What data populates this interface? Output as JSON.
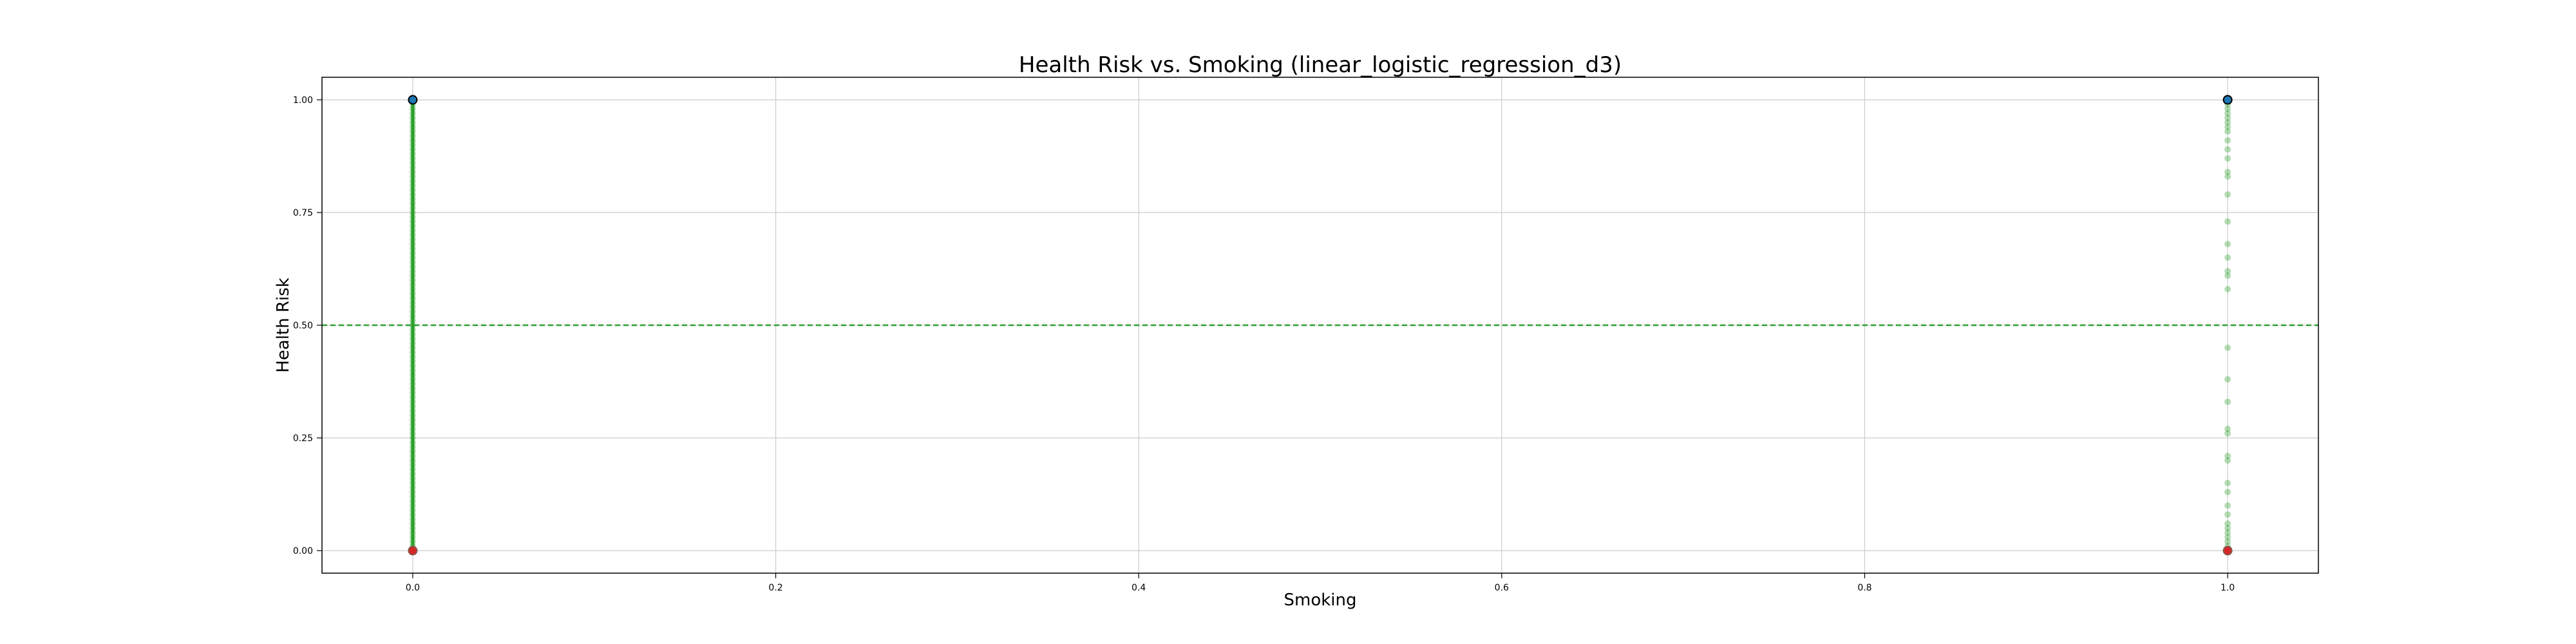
{
  "chart_data": {
    "type": "scatter",
    "title": "Health Risk vs. Smoking (linear_logistic_regression_d3)",
    "xlabel": "Smoking",
    "ylabel": "Health Risk",
    "xlim": [
      -0.05,
      1.05
    ],
    "ylim": [
      -0.05,
      1.05
    ],
    "x_ticks": [
      0.0,
      0.2,
      0.4,
      0.6,
      0.8,
      1.0
    ],
    "x_tick_labels": [
      "0.0",
      "0.2",
      "0.4",
      "0.6",
      "0.8",
      "1.0"
    ],
    "y_ticks": [
      0.0,
      0.25,
      0.5,
      0.75,
      1.0
    ],
    "y_tick_labels": [
      "0.00",
      "0.25",
      "0.50",
      "0.75",
      "1.00"
    ],
    "grid": true,
    "threshold_line": {
      "y": 0.5,
      "style": "dashed",
      "color": "#2ca02c"
    },
    "series": [
      {
        "marker": "circle",
        "color": "#1f77b4",
        "edge_color": "#000000",
        "points": [
          {
            "x": 0.0,
            "y": 1.0
          },
          {
            "x": 1.0,
            "y": 1.0
          }
        ]
      },
      {
        "marker": "circle",
        "color": "#d62728",
        "edge_color": "#8c564b",
        "points": [
          {
            "x": 0.0,
            "y": 0.0
          },
          {
            "x": 1.0,
            "y": 0.0
          }
        ]
      },
      {
        "marker": "circle",
        "color": "#2ca02c",
        "alpha": 0.35,
        "points": [
          {
            "x": 0.0,
            "y": 0.0
          },
          {
            "x": 0.0,
            "y": 0.01
          },
          {
            "x": 0.0,
            "y": 0.02
          },
          {
            "x": 0.0,
            "y": 0.03
          },
          {
            "x": 0.0,
            "y": 0.04
          },
          {
            "x": 0.0,
            "y": 0.05
          },
          {
            "x": 0.0,
            "y": 0.06
          },
          {
            "x": 0.0,
            "y": 0.07
          },
          {
            "x": 0.0,
            "y": 0.08
          },
          {
            "x": 0.0,
            "y": 0.09
          },
          {
            "x": 0.0,
            "y": 0.1
          },
          {
            "x": 0.0,
            "y": 0.11
          },
          {
            "x": 0.0,
            "y": 0.12
          },
          {
            "x": 0.0,
            "y": 0.13
          },
          {
            "x": 0.0,
            "y": 0.14
          },
          {
            "x": 0.0,
            "y": 0.15
          },
          {
            "x": 0.0,
            "y": 0.16
          },
          {
            "x": 0.0,
            "y": 0.17
          },
          {
            "x": 0.0,
            "y": 0.18
          },
          {
            "x": 0.0,
            "y": 0.19
          },
          {
            "x": 0.0,
            "y": 0.2
          },
          {
            "x": 0.0,
            "y": 0.21
          },
          {
            "x": 0.0,
            "y": 0.22
          },
          {
            "x": 0.0,
            "y": 0.23
          },
          {
            "x": 0.0,
            "y": 0.24
          },
          {
            "x": 0.0,
            "y": 0.25
          },
          {
            "x": 0.0,
            "y": 0.26
          },
          {
            "x": 0.0,
            "y": 0.27
          },
          {
            "x": 0.0,
            "y": 0.28
          },
          {
            "x": 0.0,
            "y": 0.29
          },
          {
            "x": 0.0,
            "y": 0.3
          },
          {
            "x": 0.0,
            "y": 0.31
          },
          {
            "x": 0.0,
            "y": 0.32
          },
          {
            "x": 0.0,
            "y": 0.33
          },
          {
            "x": 0.0,
            "y": 0.34
          },
          {
            "x": 0.0,
            "y": 0.35
          },
          {
            "x": 0.0,
            "y": 0.36
          },
          {
            "x": 0.0,
            "y": 0.37
          },
          {
            "x": 0.0,
            "y": 0.38
          },
          {
            "x": 0.0,
            "y": 0.39
          },
          {
            "x": 0.0,
            "y": 0.4
          },
          {
            "x": 0.0,
            "y": 0.41
          },
          {
            "x": 0.0,
            "y": 0.42
          },
          {
            "x": 0.0,
            "y": 0.43
          },
          {
            "x": 0.0,
            "y": 0.44
          },
          {
            "x": 0.0,
            "y": 0.45
          },
          {
            "x": 0.0,
            "y": 0.46
          },
          {
            "x": 0.0,
            "y": 0.47
          },
          {
            "x": 0.0,
            "y": 0.48
          },
          {
            "x": 0.0,
            "y": 0.49
          },
          {
            "x": 0.0,
            "y": 0.5
          },
          {
            "x": 0.0,
            "y": 0.51
          },
          {
            "x": 0.0,
            "y": 0.52
          },
          {
            "x": 0.0,
            "y": 0.53
          },
          {
            "x": 0.0,
            "y": 0.54
          },
          {
            "x": 0.0,
            "y": 0.55
          },
          {
            "x": 0.0,
            "y": 0.56
          },
          {
            "x": 0.0,
            "y": 0.57
          },
          {
            "x": 0.0,
            "y": 0.58
          },
          {
            "x": 0.0,
            "y": 0.59
          },
          {
            "x": 0.0,
            "y": 0.6
          },
          {
            "x": 0.0,
            "y": 0.61
          },
          {
            "x": 0.0,
            "y": 0.62
          },
          {
            "x": 0.0,
            "y": 0.63
          },
          {
            "x": 0.0,
            "y": 0.64
          },
          {
            "x": 0.0,
            "y": 0.65
          },
          {
            "x": 0.0,
            "y": 0.66
          },
          {
            "x": 0.0,
            "y": 0.67
          },
          {
            "x": 0.0,
            "y": 0.68
          },
          {
            "x": 0.0,
            "y": 0.69
          },
          {
            "x": 0.0,
            "y": 0.7
          },
          {
            "x": 0.0,
            "y": 0.71
          },
          {
            "x": 0.0,
            "y": 0.72
          },
          {
            "x": 0.0,
            "y": 0.73
          },
          {
            "x": 0.0,
            "y": 0.74
          },
          {
            "x": 0.0,
            "y": 0.75
          },
          {
            "x": 0.0,
            "y": 0.76
          },
          {
            "x": 0.0,
            "y": 0.77
          },
          {
            "x": 0.0,
            "y": 0.78
          },
          {
            "x": 0.0,
            "y": 0.79
          },
          {
            "x": 0.0,
            "y": 0.8
          },
          {
            "x": 0.0,
            "y": 0.81
          },
          {
            "x": 0.0,
            "y": 0.82
          },
          {
            "x": 0.0,
            "y": 0.83
          },
          {
            "x": 0.0,
            "y": 0.84
          },
          {
            "x": 0.0,
            "y": 0.85
          },
          {
            "x": 0.0,
            "y": 0.86
          },
          {
            "x": 0.0,
            "y": 0.87
          },
          {
            "x": 0.0,
            "y": 0.88
          },
          {
            "x": 0.0,
            "y": 0.89
          },
          {
            "x": 0.0,
            "y": 0.9
          },
          {
            "x": 0.0,
            "y": 0.91
          },
          {
            "x": 0.0,
            "y": 0.92
          },
          {
            "x": 0.0,
            "y": 0.93
          },
          {
            "x": 0.0,
            "y": 0.94
          },
          {
            "x": 0.0,
            "y": 0.95
          },
          {
            "x": 0.0,
            "y": 0.96
          },
          {
            "x": 0.0,
            "y": 0.97
          },
          {
            "x": 0.0,
            "y": 0.98
          },
          {
            "x": 0.0,
            "y": 0.99
          },
          {
            "x": 0.0,
            "y": 1.0
          },
          {
            "x": 1.0,
            "y": 0.0
          },
          {
            "x": 1.0,
            "y": 0.01
          },
          {
            "x": 1.0,
            "y": 0.02
          },
          {
            "x": 1.0,
            "y": 0.03
          },
          {
            "x": 1.0,
            "y": 0.04
          },
          {
            "x": 1.0,
            "y": 0.05
          },
          {
            "x": 1.0,
            "y": 0.06
          },
          {
            "x": 1.0,
            "y": 0.08
          },
          {
            "x": 1.0,
            "y": 0.1
          },
          {
            "x": 1.0,
            "y": 0.13
          },
          {
            "x": 1.0,
            "y": 0.15
          },
          {
            "x": 1.0,
            "y": 0.2
          },
          {
            "x": 1.0,
            "y": 0.21
          },
          {
            "x": 1.0,
            "y": 0.26
          },
          {
            "x": 1.0,
            "y": 0.27
          },
          {
            "x": 1.0,
            "y": 0.33
          },
          {
            "x": 1.0,
            "y": 0.38
          },
          {
            "x": 1.0,
            "y": 0.45
          },
          {
            "x": 1.0,
            "y": 0.58
          },
          {
            "x": 1.0,
            "y": 0.61
          },
          {
            "x": 1.0,
            "y": 0.62
          },
          {
            "x": 1.0,
            "y": 0.65
          },
          {
            "x": 1.0,
            "y": 0.68
          },
          {
            "x": 1.0,
            "y": 0.73
          },
          {
            "x": 1.0,
            "y": 0.79
          },
          {
            "x": 1.0,
            "y": 0.83
          },
          {
            "x": 1.0,
            "y": 0.84
          },
          {
            "x": 1.0,
            "y": 0.87
          },
          {
            "x": 1.0,
            "y": 0.89
          },
          {
            "x": 1.0,
            "y": 0.91
          },
          {
            "x": 1.0,
            "y": 0.93
          },
          {
            "x": 1.0,
            "y": 0.94
          },
          {
            "x": 1.0,
            "y": 0.95
          },
          {
            "x": 1.0,
            "y": 0.96
          },
          {
            "x": 1.0,
            "y": 0.97
          },
          {
            "x": 1.0,
            "y": 0.98
          },
          {
            "x": 1.0,
            "y": 0.99
          },
          {
            "x": 1.0,
            "y": 1.0
          }
        ]
      }
    ],
    "colors": {
      "background": "#ffffff",
      "grid": "#cccccc",
      "axes": "#000000"
    }
  }
}
